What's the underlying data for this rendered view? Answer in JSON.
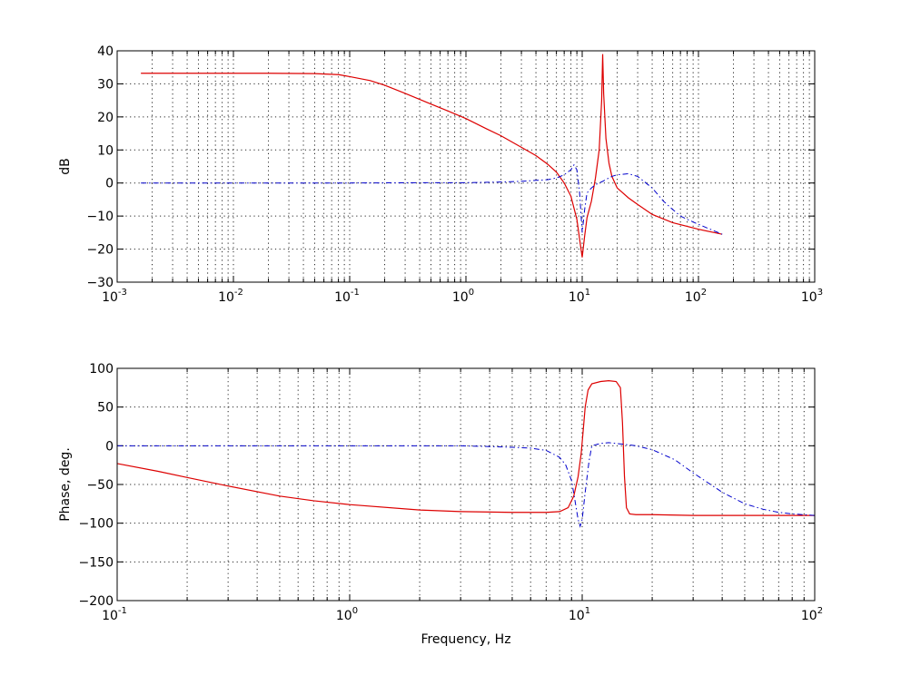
{
  "chart_data": [
    {
      "type": "line",
      "xscale": "log",
      "xlim": [
        0.001,
        1000
      ],
      "ylim": [
        -30,
        40
      ],
      "ylabel": "dB",
      "xlabel": "",
      "grid": true,
      "xticks": [
        {
          "value": 0.001,
          "base": "10",
          "exp": "-3"
        },
        {
          "value": 0.01,
          "base": "10",
          "exp": "-2"
        },
        {
          "value": 0.1,
          "base": "10",
          "exp": "-1"
        },
        {
          "value": 1,
          "base": "10",
          "exp": "0"
        },
        {
          "value": 10,
          "base": "10",
          "exp": "1"
        },
        {
          "value": 100,
          "base": "10",
          "exp": "2"
        },
        {
          "value": 1000,
          "base": "10",
          "exp": "3"
        }
      ],
      "yticks": [
        {
          "value": 40,
          "label": "40"
        },
        {
          "value": 30,
          "label": "30"
        },
        {
          "value": 20,
          "label": "20"
        },
        {
          "value": 10,
          "label": "10"
        },
        {
          "value": 0,
          "label": "0"
        },
        {
          "value": -10,
          "label": "−10"
        },
        {
          "value": -20,
          "label": "−20"
        },
        {
          "value": -30,
          "label": "−30"
        }
      ],
      "series": [
        {
          "color": "#dd0000",
          "style": "solid",
          "x": [
            0.0016,
            0.005,
            0.01,
            0.02,
            0.05,
            0.08,
            0.1,
            0.15,
            0.2,
            0.3,
            0.5,
            0.7,
            1,
            1.5,
            2,
            3,
            4,
            5,
            6,
            7,
            8,
            9,
            9.5,
            10,
            10.5,
            11,
            12,
            13,
            14,
            14.7,
            15,
            15.3,
            16,
            17,
            18,
            20,
            25,
            30,
            40,
            60,
            100,
            160
          ],
          "y": [
            33.2,
            33.2,
            33.2,
            33.2,
            33.1,
            32.8,
            32.2,
            31.0,
            29.6,
            27.1,
            23.9,
            21.8,
            19.5,
            16.4,
            14.3,
            10.8,
            8.3,
            5.8,
            3.3,
            0.0,
            -4.0,
            -11.0,
            -17.0,
            -22.5,
            -16.0,
            -10.5,
            -5.5,
            1.5,
            10.0,
            25.0,
            39.0,
            27.0,
            13.5,
            6.0,
            2.0,
            -1.5,
            -4.5,
            -6.5,
            -9.5,
            -12.0,
            -14.0,
            -15.5
          ]
        },
        {
          "color": "#0000cc",
          "style": "dashed",
          "x": [
            0.0016,
            0.01,
            0.1,
            0.5,
            1,
            2,
            3,
            4,
            5,
            6,
            7,
            8,
            8.5,
            9,
            9.5,
            10,
            10.5,
            11,
            12,
            13,
            15,
            18,
            20,
            25,
            30,
            40,
            50,
            60,
            70,
            80,
            100,
            160
          ],
          "y": [
            0.0,
            0.0,
            0.0,
            0.1,
            0.1,
            0.3,
            0.5,
            0.8,
            1.0,
            1.5,
            2.5,
            4.0,
            5.5,
            4.0,
            -3.0,
            -15.0,
            -8.0,
            -3.0,
            -1.5,
            -0.5,
            0.5,
            2.0,
            2.5,
            2.8,
            2.0,
            -1.5,
            -5.5,
            -8.0,
            -10.0,
            -11.0,
            -12.5,
            -15.5
          ]
        }
      ]
    },
    {
      "type": "line",
      "xscale": "log",
      "xlim": [
        0.1,
        100
      ],
      "ylim": [
        -200,
        100
      ],
      "ylabel": "Phase, deg.",
      "xlabel": "Frequency, Hz",
      "grid": true,
      "xticks": [
        {
          "value": 0.1,
          "base": "10",
          "exp": "-1"
        },
        {
          "value": 1,
          "base": "10",
          "exp": "0"
        },
        {
          "value": 10,
          "base": "10",
          "exp": "1"
        },
        {
          "value": 100,
          "base": "10",
          "exp": "2"
        }
      ],
      "yticks": [
        {
          "value": 100,
          "label": "100"
        },
        {
          "value": 50,
          "label": "50"
        },
        {
          "value": 0,
          "label": "0"
        },
        {
          "value": -50,
          "label": "−50"
        },
        {
          "value": -100,
          "label": "−100"
        },
        {
          "value": -150,
          "label": "−150"
        },
        {
          "value": -200,
          "label": "−200"
        }
      ],
      "series": [
        {
          "color": "#dd0000",
          "style": "solid",
          "x": [
            0.1,
            0.15,
            0.2,
            0.3,
            0.5,
            0.7,
            1,
            2,
            3,
            5,
            7,
            8,
            8.7,
            9.2,
            9.6,
            9.9,
            10.1,
            10.3,
            10.6,
            11,
            12,
            13,
            14,
            14.6,
            14.9,
            15.2,
            15.5,
            16,
            17,
            20,
            30,
            50,
            100
          ],
          "y": [
            -23,
            -33,
            -41,
            -52,
            -65,
            -71,
            -76,
            -83,
            -85,
            -86,
            -86,
            -85,
            -80,
            -65,
            -40,
            -10,
            20,
            50,
            72,
            80,
            83,
            84,
            83,
            75,
            30,
            -40,
            -80,
            -88,
            -89,
            -89,
            -90,
            -90,
            -90
          ]
        },
        {
          "color": "#0000cc",
          "style": "dashed",
          "x": [
            0.1,
            0.5,
            1,
            2,
            3,
            4,
            5,
            6,
            7,
            8,
            8.5,
            9,
            9.3,
            9.6,
            9.8,
            10,
            10.3,
            10.7,
            11,
            12,
            13,
            14,
            15,
            17,
            20,
            25,
            30,
            40,
            50,
            60,
            70,
            80,
            100
          ],
          "y": [
            0,
            0,
            0,
            0,
            0,
            -1,
            -2,
            -3,
            -6,
            -15,
            -25,
            -45,
            -70,
            -95,
            -104,
            -95,
            -60,
            -20,
            0,
            3,
            4,
            3,
            2,
            0,
            -5,
            -18,
            -35,
            -60,
            -75,
            -82,
            -86,
            -88,
            -90
          ]
        }
      ]
    }
  ]
}
